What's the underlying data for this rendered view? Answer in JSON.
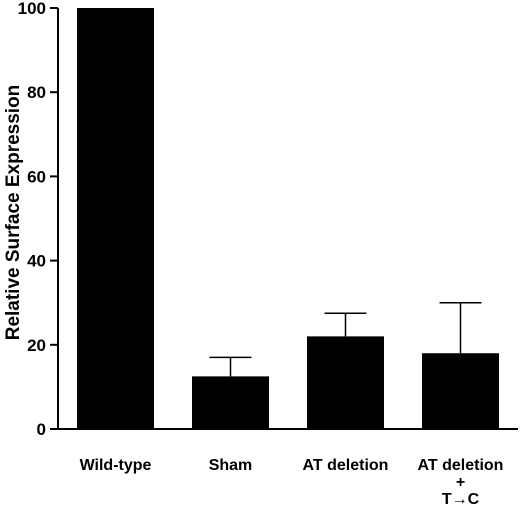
{
  "chart_data": {
    "type": "bar",
    "title": "",
    "xlabel": "",
    "ylabel": "Relative Surface Expression",
    "ylim": [
      0,
      100
    ],
    "yticks": [
      0,
      20,
      40,
      60,
      80,
      100
    ],
    "grid": false,
    "categories": [
      "Wild-type",
      "Sham",
      "AT deletion",
      "AT deletion + T→C"
    ],
    "category_lines": [
      [
        "Wild-type"
      ],
      [
        "Sham"
      ],
      [
        "AT deletion"
      ],
      [
        "AT deletion",
        "+",
        "T→C"
      ]
    ],
    "values": [
      100,
      12.5,
      22,
      18
    ],
    "error_upper": [
      0,
      4.5,
      5.5,
      12
    ],
    "colors": {
      "bar": "#000000",
      "axis": "#000000",
      "background": "#ffffff"
    }
  }
}
